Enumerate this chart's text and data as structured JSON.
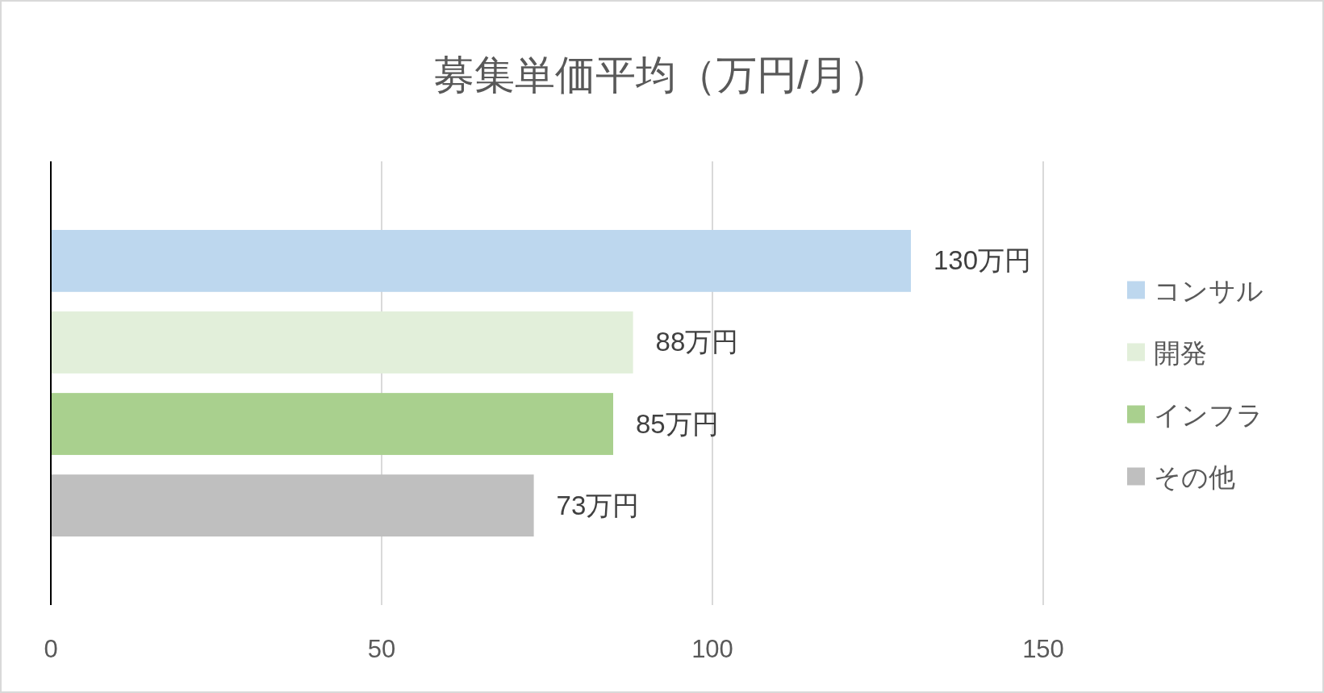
{
  "chart_data": {
    "type": "bar",
    "orientation": "horizontal",
    "title": "募集単価平均（万円/月）",
    "categories": [
      null
    ],
    "series": [
      {
        "name": "コンサル",
        "color": "#bdd7ee",
        "values": [
          130
        ],
        "value_labels": [
          "130万円"
        ]
      },
      {
        "name": "開発",
        "color": "#e2efda",
        "values": [
          88
        ],
        "value_labels": [
          "88万円"
        ]
      },
      {
        "name": "インフラ",
        "color": "#a9d08e",
        "values": [
          85
        ],
        "value_labels": [
          "85万円"
        ]
      },
      {
        "name": "その他",
        "color": "#bfbfbf",
        "values": [
          73
        ],
        "value_labels": [
          "73万円"
        ]
      }
    ],
    "xlim": [
      0,
      150
    ],
    "xticks": [
      0,
      50,
      100,
      150
    ],
    "grid": "x",
    "legend": "right",
    "tick_labels": "x"
  }
}
